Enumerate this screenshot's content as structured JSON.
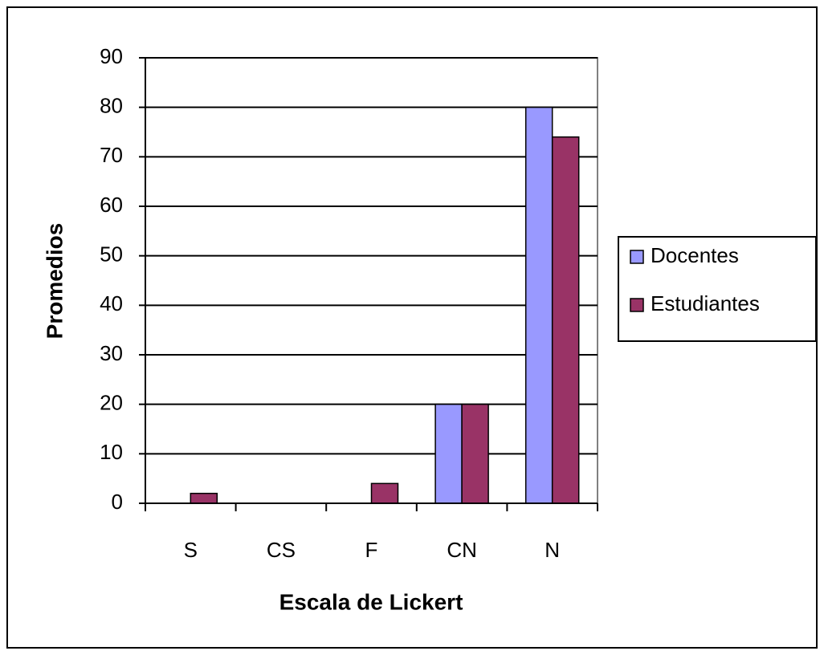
{
  "chart_data": {
    "type": "bar",
    "x_label": "Escala de Lickert",
    "y_label": "Promedios",
    "categories": [
      "S",
      "CS",
      "F",
      "CN",
      "N"
    ],
    "series": [
      {
        "name": "Docentes",
        "color": "#9999ff",
        "values": [
          0,
          0,
          0,
          20,
          80
        ]
      },
      {
        "name": "Estudiantes",
        "color": "#993366",
        "values": [
          2,
          0,
          4,
          20,
          74
        ]
      }
    ],
    "ylim": [
      0,
      90
    ],
    "yticks": [
      0,
      10,
      20,
      30,
      40,
      50,
      60,
      70,
      80,
      90
    ],
    "grid": true,
    "legend": "right"
  }
}
